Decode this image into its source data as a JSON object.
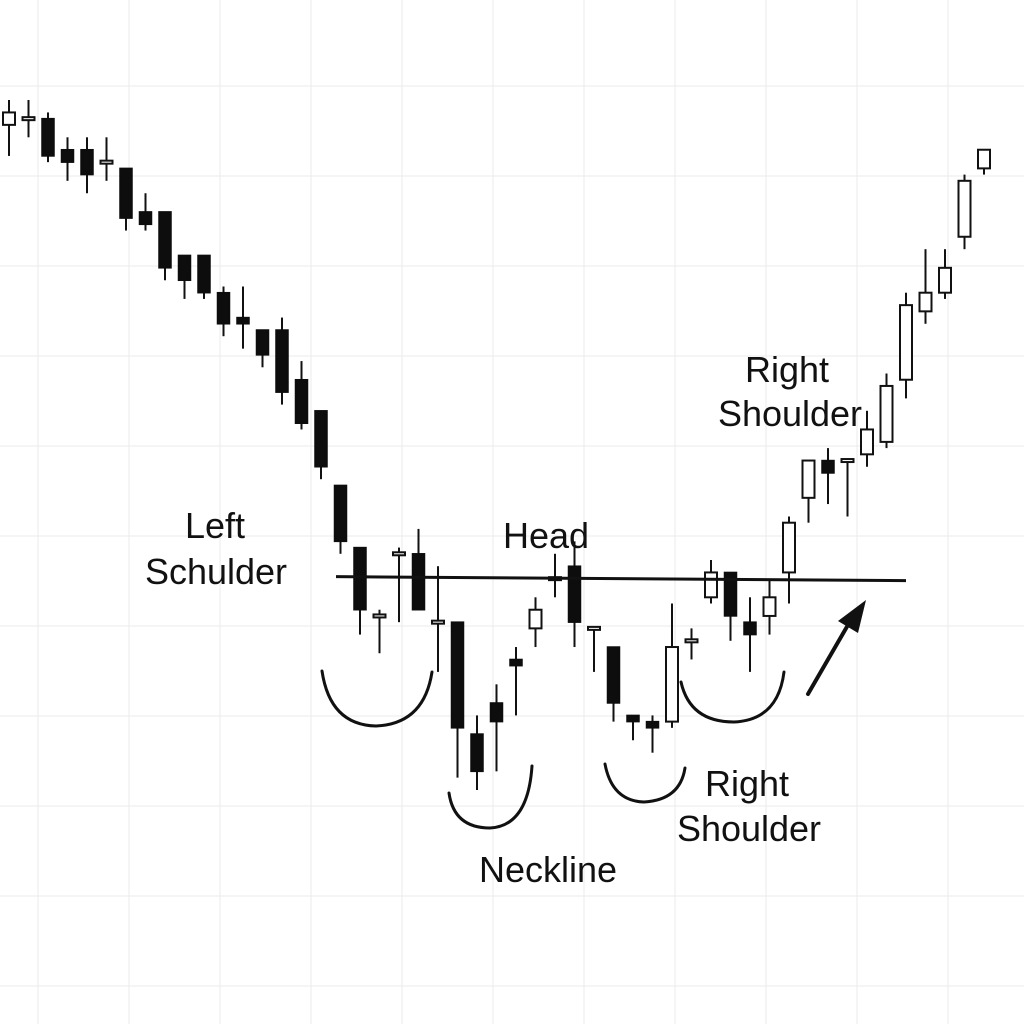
{
  "chart_data": {
    "type": "candlestick",
    "title": "",
    "xlabel": "",
    "ylabel": "",
    "grid": true,
    "candles": [
      {
        "o": 88,
        "h": 92,
        "l": 83,
        "c": 90
      },
      {
        "o": 89,
        "h": 92,
        "l": 86,
        "c": 89
      },
      {
        "o": 89,
        "h": 90,
        "l": 82,
        "c": 83
      },
      {
        "o": 84,
        "h": 86,
        "l": 79,
        "c": 82
      },
      {
        "o": 84,
        "h": 86,
        "l": 77,
        "c": 80
      },
      {
        "o": 82,
        "h": 86,
        "l": 79,
        "c": 82
      },
      {
        "o": 81,
        "h": 81,
        "l": 71,
        "c": 73
      },
      {
        "o": 74,
        "h": 77,
        "l": 71,
        "c": 72
      },
      {
        "o": 74,
        "h": 74,
        "l": 63,
        "c": 65
      },
      {
        "o": 67,
        "h": 67,
        "l": 60,
        "c": 63
      },
      {
        "o": 67,
        "h": 67,
        "l": 60,
        "c": 61
      },
      {
        "o": 61,
        "h": 62,
        "l": 54,
        "c": 56
      },
      {
        "o": 57,
        "h": 62,
        "l": 52,
        "c": 56
      },
      {
        "o": 55,
        "h": 55,
        "l": 49,
        "c": 51
      },
      {
        "o": 55,
        "h": 57,
        "l": 43,
        "c": 45
      },
      {
        "o": 47,
        "h": 50,
        "l": 39,
        "c": 40
      },
      {
        "o": 42,
        "h": 42,
        "l": 31,
        "c": 33
      },
      {
        "o": 30,
        "h": 30,
        "l": 19,
        "c": 21
      },
      {
        "o": 20,
        "h": 20,
        "l": 6,
        "c": 10
      },
      {
        "o": 9,
        "h": 10,
        "l": 3,
        "c": 9
      },
      {
        "o": 19,
        "h": 20,
        "l": 8,
        "c": 19
      },
      {
        "o": 19,
        "h": 23,
        "l": 10,
        "c": 10
      },
      {
        "o": 8,
        "h": 17,
        "l": 0,
        "c": 8
      },
      {
        "o": 8,
        "h": 8,
        "l": -17,
        "c": -9
      },
      {
        "o": -10,
        "h": -7,
        "l": -19,
        "c": -16
      },
      {
        "o": -5,
        "h": -2,
        "l": -16,
        "c": -8
      },
      {
        "o": 2,
        "h": 4,
        "l": -7,
        "c": 1
      },
      {
        "o": 7,
        "h": 12,
        "l": 4,
        "c": 10
      },
      {
        "o": 15,
        "h": 19,
        "l": 12,
        "c": 15
      },
      {
        "o": 17,
        "h": 21,
        "l": 4,
        "c": 8
      },
      {
        "o": 7,
        "h": 7,
        "l": 0,
        "c": 7
      },
      {
        "o": 4,
        "h": 4,
        "l": -8,
        "c": -5
      },
      {
        "o": -7,
        "h": -7,
        "l": -11,
        "c": -8
      },
      {
        "o": -8,
        "h": -7,
        "l": -13,
        "c": -9
      },
      {
        "o": -8,
        "h": 11,
        "l": -9,
        "c": 4
      },
      {
        "o": 5,
        "h": 7,
        "l": 2,
        "c": 5
      },
      {
        "o": 12,
        "h": 18,
        "l": 11,
        "c": 16
      },
      {
        "o": 16,
        "h": 16,
        "l": 5,
        "c": 9
      },
      {
        "o": 8,
        "h": 12,
        "l": 0,
        "c": 6
      },
      {
        "o": 9,
        "h": 15,
        "l": 6,
        "c": 12
      },
      {
        "o": 16,
        "h": 25,
        "l": 11,
        "c": 24
      },
      {
        "o": 28,
        "h": 33,
        "l": 24,
        "c": 34
      },
      {
        "o": 34,
        "h": 36,
        "l": 27,
        "c": 32
      },
      {
        "o": 34,
        "h": 33,
        "l": 25,
        "c": 34
      },
      {
        "o": 35,
        "h": 42,
        "l": 33,
        "c": 39
      },
      {
        "o": 37,
        "h": 48,
        "l": 36,
        "c": 46
      },
      {
        "o": 47,
        "h": 61,
        "l": 44,
        "c": 59
      },
      {
        "o": 58,
        "h": 68,
        "l": 56,
        "c": 61
      },
      {
        "o": 61,
        "h": 68,
        "l": 60,
        "c": 65
      },
      {
        "o": 70,
        "h": 80,
        "l": 68,
        "c": 79
      },
      {
        "o": 81,
        "h": 84,
        "l": 80,
        "c": 84
      }
    ],
    "neckline": 15,
    "annotations": [
      "Left\nSchulder",
      "Head",
      "Neckline",
      "Right\nShoulder",
      "Right\nShoulder"
    ]
  }
}
